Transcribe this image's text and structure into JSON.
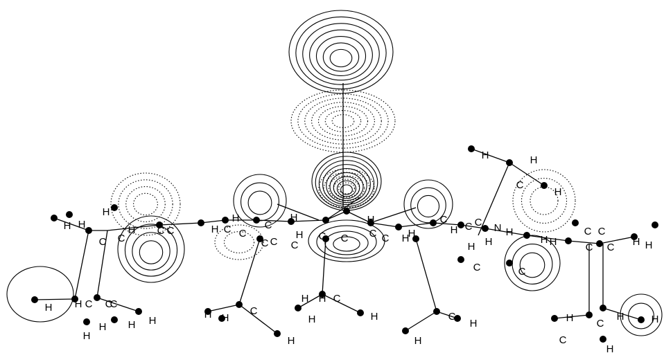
{
  "atom_labels": [
    "H",
    "H",
    "C",
    "H",
    "H",
    "H",
    "H",
    "C",
    "C",
    "H",
    "C",
    "C",
    "H",
    "C",
    "H",
    "C",
    "C",
    "H",
    "C",
    "C",
    "C",
    "H",
    "C",
    "C",
    "H",
    "C",
    "C",
    "C",
    "H",
    "C",
    "C",
    "N",
    "H",
    "H",
    "H",
    "C",
    "C",
    "H",
    "H",
    "C",
    "C",
    "H",
    "H",
    "C",
    "C",
    "H",
    "H",
    "H",
    "H",
    "C",
    "C",
    "C",
    "H",
    "H",
    "H",
    "H",
    "H",
    "H",
    "C",
    "H",
    "H",
    "H",
    "C",
    "H",
    "H",
    "C",
    "H",
    "H",
    "H",
    "C",
    "C",
    "H",
    "H",
    "H"
  ]
}
